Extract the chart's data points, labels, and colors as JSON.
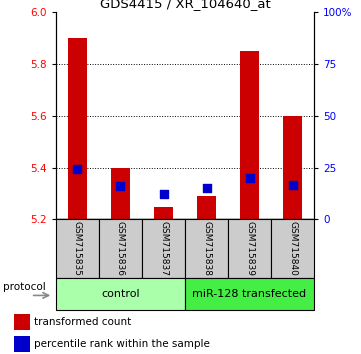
{
  "title": "GDS4415 / XR_104640_at",
  "samples": [
    "GSM715835",
    "GSM715836",
    "GSM715837",
    "GSM715838",
    "GSM715839",
    "GSM715840"
  ],
  "red_tops": [
    5.9,
    5.4,
    5.25,
    5.29,
    5.85,
    5.6
  ],
  "blue_vals": [
    5.395,
    5.33,
    5.3,
    5.32,
    5.36,
    5.335
  ],
  "baseline": 5.2,
  "ylim_left": [
    5.2,
    6.0
  ],
  "left_ticks": [
    5.2,
    5.4,
    5.6,
    5.8,
    6.0
  ],
  "right_ticks": [
    0,
    25,
    50,
    75,
    100
  ],
  "right_tick_labels": [
    "0",
    "25",
    "50",
    "75",
    "100%"
  ],
  "right_ylim": [
    0,
    100
  ],
  "grid_vals": [
    5.4,
    5.6,
    5.8
  ],
  "control_label": "control",
  "transfected_label": "miR-128 transfected",
  "protocol_label": "protocol",
  "legend_red": "transformed count",
  "legend_blue": "percentile rank within the sample",
  "bar_color": "#cc0000",
  "blue_color": "#0000cc",
  "control_bg": "#aaffaa",
  "transfected_bg": "#44ee44",
  "sample_bg": "#cccccc",
  "bar_width": 0.45,
  "blue_square_size": 30
}
